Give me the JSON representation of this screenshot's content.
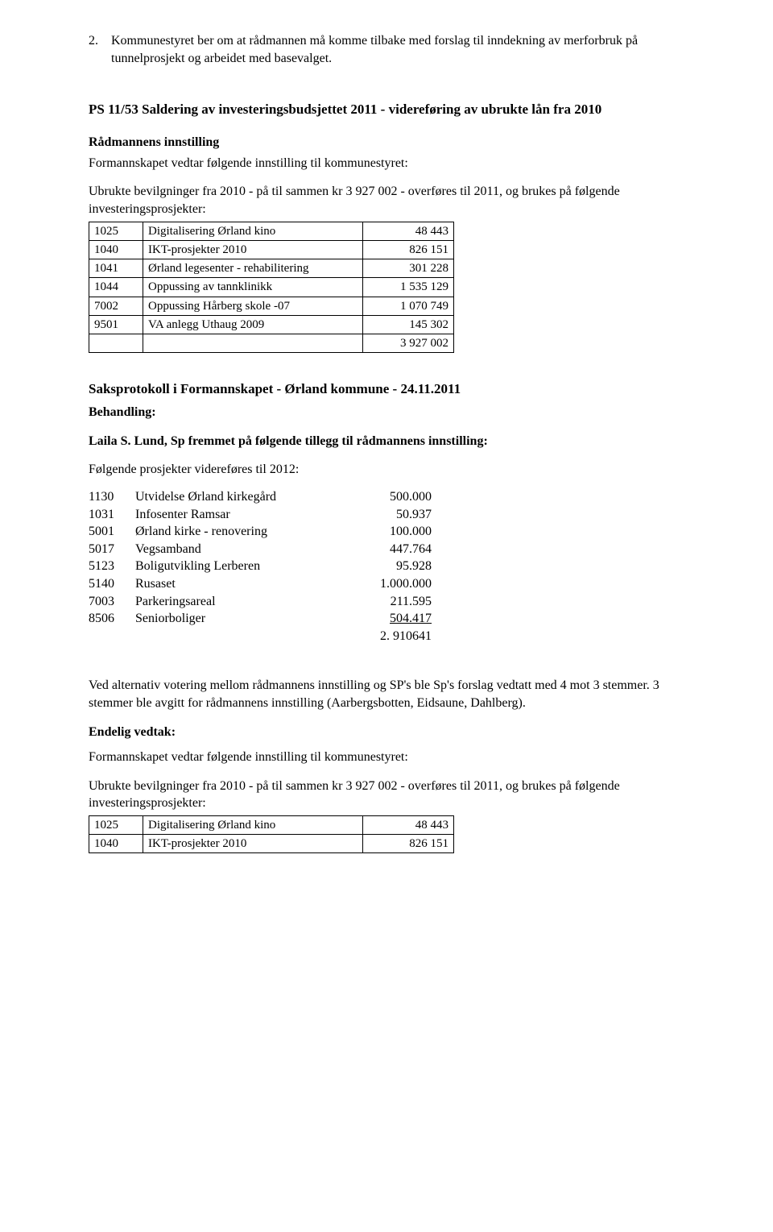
{
  "item2": {
    "num": "2.",
    "text": "Kommunestyret ber om at rådmannen må komme tilbake med forslag til inndekning av merforbruk på tunnelprosjekt og arbeidet med basevalget."
  },
  "ps_title": "PS 11/53 Saldering av investeringsbudsjettet 2011 - videreføring av ubrukte lån fra 2010",
  "radmann": {
    "heading": "Rådmannens innstilling",
    "line1": "Formannskapet vedtar følgende innstilling til kommunestyret:",
    "line2": "Ubrukte bevilgninger fra 2010 - på til sammen kr 3 927 002 - overføres til 2011, og brukes på følgende investeringsprosjekter:"
  },
  "budget_table": {
    "rows": [
      {
        "code": "1025",
        "desc": "Digitalisering Ørland kino",
        "amount": "48 443"
      },
      {
        "code": "1040",
        "desc": "IKT-prosjekter 2010",
        "amount": "826 151"
      },
      {
        "code": "1041",
        "desc": "Ørland legesenter - rehabilitering",
        "amount": "301 228"
      },
      {
        "code": "1044",
        "desc": "Oppussing av tannklinikk",
        "amount": "1 535 129"
      },
      {
        "code": "7002",
        "desc": "Oppussing Hårberg skole -07",
        "amount": "1 070 749"
      },
      {
        "code": "9501",
        "desc": "VA anlegg Uthaug 2009",
        "amount": "145 302"
      },
      {
        "code": "",
        "desc": "",
        "amount": "3 927 002"
      }
    ]
  },
  "saksprot": {
    "title": "Saksprotokoll i Formannskapet - Ørland kommune - 24.11.2011",
    "behandling": "Behandling:",
    "laila": "Laila S. Lund, Sp fremmet på følgende tillegg til rådmannens innstilling:",
    "folgende": "Følgende prosjekter videreføres til 2012:"
  },
  "projects": {
    "rows": [
      {
        "code": "1130",
        "desc": "Utvidelse Ørland kirkegård",
        "amount": "500.000"
      },
      {
        "code": "1031",
        "desc": "Infosenter Ramsar",
        "amount": "50.937"
      },
      {
        "code": "5001",
        "desc": "Ørland kirke - renovering",
        "amount": "100.000"
      },
      {
        "code": "5017",
        "desc": "Vegsamband",
        "amount": "447.764"
      },
      {
        "code": "5123",
        "desc": "Boligutvikling Lerberen",
        "amount": "95.928"
      },
      {
        "code": "5140",
        "desc": "Rusaset",
        "amount": "1.000.000"
      },
      {
        "code": "7003",
        "desc": "Parkeringsareal",
        "amount": "211.595"
      },
      {
        "code": "8506",
        "desc": "Seniorboliger",
        "amount": "504.417",
        "underline": true
      }
    ],
    "total": "2. 910641"
  },
  "voting": "Ved alternativ votering mellom rådmannens innstilling og SP's  ble Sp's forslag  vedtatt med 4 mot 3 stemmer.  3 stemmer ble avgitt for rådmannens innstilling (Aarbergsbotten, Eidsaune, Dahlberg).",
  "endelig": {
    "heading": "Endelig vedtak:",
    "line1": "Formannskapet vedtar følgende innstilling til kommunestyret:",
    "line2": "Ubrukte bevilgninger fra 2010 - på til sammen kr 3 927 002 - overføres til 2011, og brukes på følgende investeringsprosjekter:"
  },
  "budget_table2": {
    "rows": [
      {
        "code": "1025",
        "desc": "Digitalisering Ørland kino",
        "amount": "48 443"
      },
      {
        "code": "1040",
        "desc": "IKT-prosjekter 2010",
        "amount": "826 151"
      }
    ]
  }
}
